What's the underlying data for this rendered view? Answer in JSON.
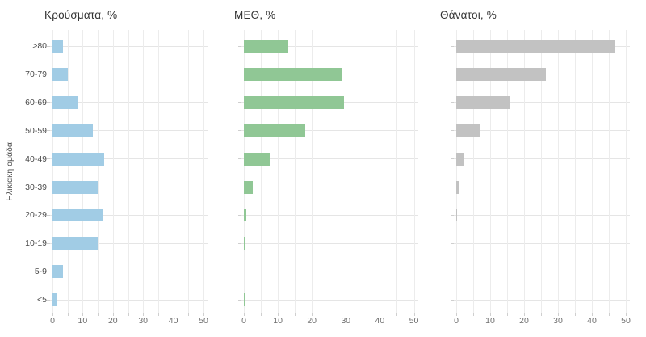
{
  "chart_data": [
    {
      "type": "bar",
      "orientation": "horizontal",
      "title": "Κρούσματα, %",
      "ylabel": "Ηλικιακή ομάδα",
      "categories": [
        ">80",
        "70-79",
        "60-69",
        "50-59",
        "40-49",
        "30-39",
        "20-29",
        "10-19",
        "5-9",
        "<5"
      ],
      "values": [
        3.5,
        5,
        8.5,
        13.5,
        17,
        15,
        16.5,
        15,
        3.5,
        1.5
      ],
      "color": "#a1cce5",
      "xlim": [
        0,
        50
      ],
      "xticks": [
        0,
        10,
        20,
        30,
        40,
        50
      ],
      "grid": true,
      "legend": false
    },
    {
      "type": "bar",
      "orientation": "horizontal",
      "title": "ΜΕΘ, %",
      "ylabel": "Ηλικιακή ομάδα",
      "categories": [
        ">80",
        "70-79",
        "60-69",
        "50-59",
        "40-49",
        "30-39",
        "20-29",
        "10-19",
        "5-9",
        "<5"
      ],
      "values": [
        13,
        29,
        29.5,
        18,
        7.5,
        2.5,
        0.8,
        0.15,
        0,
        0.15
      ],
      "color": "#90c795",
      "xlim": [
        0,
        50
      ],
      "xticks": [
        0,
        10,
        20,
        30,
        40,
        50
      ],
      "grid": true,
      "legend": false
    },
    {
      "type": "bar",
      "orientation": "horizontal",
      "title": "Θάνατοι, %",
      "ylabel": "Ηλικιακή ομάδα",
      "categories": [
        ">80",
        "70-79",
        "60-69",
        "50-59",
        "40-49",
        "30-39",
        "20-29",
        "10-19",
        "5-9",
        "<5"
      ],
      "values": [
        47,
        26.5,
        16,
        7,
        2.2,
        0.7,
        0.2,
        0,
        0,
        0
      ],
      "color": "#c2c2c2",
      "xlim": [
        0,
        50
      ],
      "xticks": [
        0,
        10,
        20,
        30,
        40,
        50
      ],
      "grid": true,
      "legend": false
    }
  ]
}
